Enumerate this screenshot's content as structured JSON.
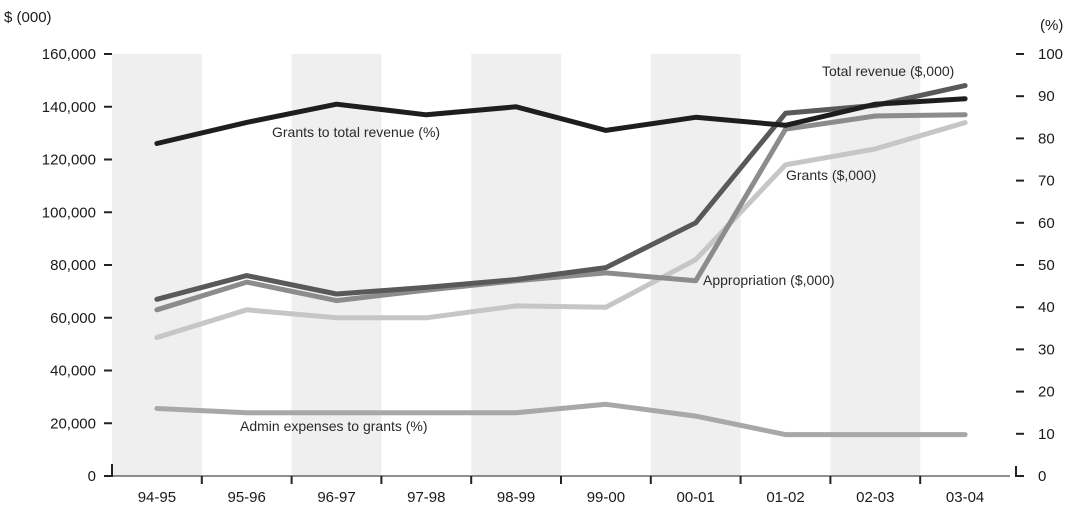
{
  "chart_data": {
    "type": "line",
    "title": "",
    "categories": [
      "94-95",
      "95-96",
      "96-97",
      "97-98",
      "98-99",
      "99-00",
      "00-01",
      "01-02",
      "02-03",
      "03-04"
    ],
    "left_axis": {
      "unit_label": "$ (000)",
      "ylim": [
        0,
        160000
      ],
      "ticks": [
        0,
        20000,
        40000,
        60000,
        80000,
        100000,
        120000,
        140000,
        160000
      ],
      "tick_labels": [
        "0",
        "20,000",
        "40,000",
        "60,000",
        "80,000",
        "100,000",
        "120,000",
        "140,000",
        "160,000"
      ]
    },
    "right_axis": {
      "unit_label": "(%)",
      "ylim": [
        0,
        100
      ],
      "ticks": [
        0,
        10,
        20,
        30,
        40,
        50,
        60,
        70,
        80,
        90,
        100
      ],
      "tick_labels": [
        "0",
        "10",
        "20",
        "30",
        "40",
        "50",
        "60",
        "70",
        "80",
        "90",
        "100"
      ]
    },
    "alternating_column_shading": true,
    "grid": false,
    "series": [
      {
        "name": "Grants ($,000)",
        "axis": "left",
        "color": "#c6c6c6",
        "values": [
          52500,
          63000,
          60000,
          60000,
          64500,
          64000,
          82000,
          118000,
          124000,
          134000
        ]
      },
      {
        "name": "Admin expenses to grants (%)",
        "axis": "right",
        "color": "#a8a8a8",
        "values": [
          16,
          15,
          15,
          15,
          15,
          17,
          14.2,
          9.8,
          9.8,
          9.8
        ]
      },
      {
        "name": "Appropriation ($,000)",
        "axis": "left",
        "color": "#8c8c8c",
        "values": [
          63000,
          73500,
          66500,
          70500,
          74000,
          77000,
          74000,
          131500,
          136500,
          137000
        ]
      },
      {
        "name": "Total revenue ($,000)",
        "axis": "left",
        "color": "#595959",
        "values": [
          67000,
          76000,
          69000,
          71500,
          74500,
          79000,
          96000,
          137500,
          140500,
          148000
        ]
      },
      {
        "name": "Grants to total revenue (%)",
        "axis": "right",
        "color": "#1e1e1e",
        "values": [
          78.8,
          83.8,
          88.1,
          85.6,
          87.5,
          81.9,
          85,
          83.1,
          88.1,
          89.4
        ]
      }
    ]
  }
}
